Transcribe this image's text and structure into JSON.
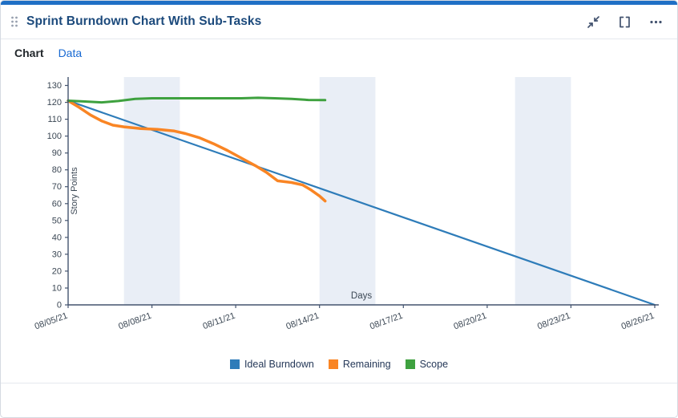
{
  "widget": {
    "title": "Sprint Burndown Chart With Sub-Tasks",
    "accent_color": "#1f6fc5"
  },
  "tabs": [
    {
      "label": "Chart",
      "active": true
    },
    {
      "label": "Data",
      "active": false
    }
  ],
  "chart_data": {
    "type": "line",
    "title": "Sprint Burndown Chart With Sub-Tasks",
    "xlabel": "Days",
    "ylabel": "Story Points",
    "ylim": [
      0,
      130
    ],
    "y_tick_step": 10,
    "x_range": [
      0,
      21
    ],
    "x_tick_positions": [
      0,
      3,
      6,
      9,
      12,
      15,
      18,
      21
    ],
    "x_tick_labels": [
      "08/05/21",
      "08/08/21",
      "08/11/21",
      "08/14/21",
      "08/17/21",
      "08/20/21",
      "08/23/21",
      "08/26/21"
    ],
    "weekend_bands": [
      [
        2,
        4
      ],
      [
        9,
        11
      ],
      [
        16,
        18
      ]
    ],
    "band_color": "#e9eef6",
    "axis_color": "#44546f",
    "tick_text_color": "#3b4754",
    "legend_position": "bottom",
    "legend": [
      "Ideal Burndown",
      "Remaining",
      "Scope"
    ],
    "series": [
      {
        "name": "Ideal Burndown",
        "color": "#2e7cb9",
        "width": 2.2,
        "points": [
          [
            0,
            121
          ],
          [
            21,
            0
          ]
        ]
      },
      {
        "name": "Remaining",
        "color": "#f98524",
        "width": 3.5,
        "points": [
          [
            0,
            121
          ],
          [
            0.4,
            117
          ],
          [
            0.8,
            112.5
          ],
          [
            1.2,
            109
          ],
          [
            1.6,
            106.5
          ],
          [
            2,
            105.5
          ],
          [
            2.6,
            104.5
          ],
          [
            3.2,
            104
          ],
          [
            3.8,
            103
          ],
          [
            4.2,
            101.5
          ],
          [
            4.7,
            99
          ],
          [
            5.2,
            95.5
          ],
          [
            5.7,
            91.5
          ],
          [
            6.2,
            87
          ],
          [
            6.7,
            82.5
          ],
          [
            7.1,
            78.5
          ],
          [
            7.5,
            73.5
          ],
          [
            8,
            72.5
          ],
          [
            8.4,
            71
          ],
          [
            8.7,
            68
          ],
          [
            9,
            64.5
          ],
          [
            9.2,
            61.5
          ]
        ]
      },
      {
        "name": "Scope",
        "color": "#3ea13f",
        "width": 3,
        "points": [
          [
            0,
            121
          ],
          [
            0.6,
            120.5
          ],
          [
            1.2,
            120
          ],
          [
            1.8,
            120.8
          ],
          [
            2.4,
            122
          ],
          [
            3,
            122.4
          ],
          [
            3.8,
            122.4
          ],
          [
            4.6,
            122.4
          ],
          [
            5.4,
            122.4
          ],
          [
            6.2,
            122.4
          ],
          [
            6.8,
            122.7
          ],
          [
            7.4,
            122.4
          ],
          [
            8,
            122
          ],
          [
            8.6,
            121.4
          ],
          [
            9.2,
            121.3
          ]
        ]
      }
    ]
  }
}
